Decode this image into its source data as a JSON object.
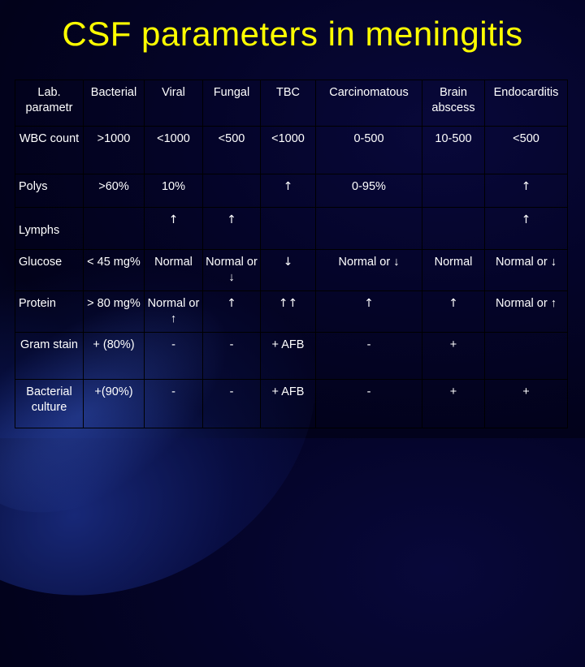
{
  "title": "CSF parameters in meningitis",
  "table": {
    "header": {
      "corner": "Lab. parametr",
      "cols": [
        "Bacterial",
        "Viral",
        "Fungal",
        "TBC",
        "Carcinomatous",
        "Brain abscess",
        "Endocarditis"
      ]
    },
    "rows": [
      {
        "label": "WBC count",
        "cells": [
          ">1000",
          "<1000",
          "<500",
          "<1000",
          "0-500",
          "10-500",
          "<500"
        ]
      },
      {
        "label": "Polys",
        "cells": [
          ">60%",
          "10%",
          "",
          "↑",
          "0-95%",
          "",
          "↑"
        ]
      },
      {
        "label": "Lymphs",
        "cells": [
          "",
          "↑",
          "↑",
          "",
          "",
          "",
          "↑"
        ]
      },
      {
        "label": "Glucose",
        "cells": [
          "< 45 mg%",
          "Normal",
          "Normal or ↓",
          "↓",
          "Normal or ↓",
          "Normal",
          "Normal or ↓"
        ]
      },
      {
        "label": "Protein",
        "cells": [
          "> 80 mg%",
          "Normal or ↑",
          "↑",
          "↑↑",
          "↑",
          "↑",
          "Normal or ↑"
        ]
      },
      {
        "label": "Gram stain",
        "cells": [
          "+ (80%)",
          "-",
          "-",
          "+ AFB",
          "-",
          "+",
          ""
        ]
      },
      {
        "label": "Bacterial culture",
        "cells": [
          "+(90%)",
          "-",
          "-",
          "+ AFB",
          "-",
          "+",
          "+"
        ]
      }
    ]
  }
}
